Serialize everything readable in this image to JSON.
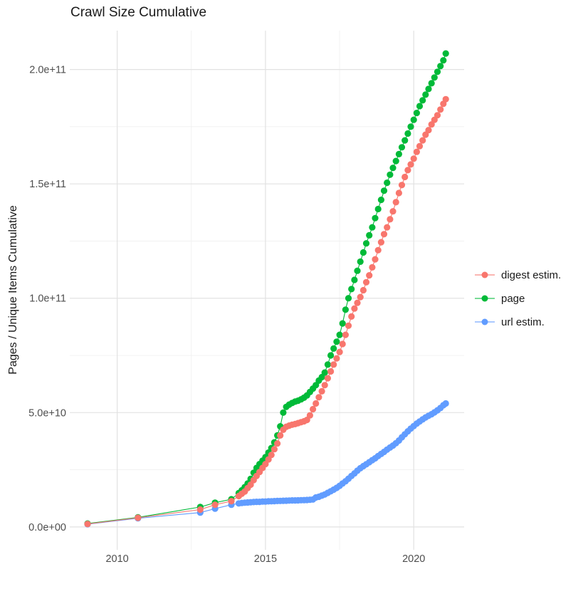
{
  "title": "Crawl Size Cumulative",
  "y_axis": {
    "label": "Pages / Unique Items Cumulative"
  },
  "chart_data": {
    "type": "line",
    "title": "Crawl Size Cumulative",
    "xlabel": "",
    "ylabel": "Pages / Unique Items Cumulative",
    "grid": true,
    "legend_position": "right",
    "xlim": [
      2008.4,
      2021.7
    ],
    "ylim": [
      -10000000000.0,
      217000000000.0
    ],
    "x_ticks": [
      {
        "value": 2010,
        "label": "2010"
      },
      {
        "value": 2015,
        "label": "2015"
      },
      {
        "value": 2020,
        "label": "2020"
      }
    ],
    "x_minor": [
      2012.5,
      2017.5
    ],
    "y_ticks": [
      {
        "value": 0,
        "label": "0.0e+00"
      },
      {
        "value": 50000000000.0,
        "label": "5.0e+10"
      },
      {
        "value": 100000000000.0,
        "label": "1.0e+11"
      },
      {
        "value": 150000000000.0,
        "label": "1.5e+11"
      },
      {
        "value": 200000000000.0,
        "label": "2.0e+11"
      }
    ],
    "y_minor": [
      25000000000.0,
      75000000000.0,
      125000000000.0,
      175000000000.0
    ],
    "draw_order": [
      "page",
      "url estim.",
      "digest estim."
    ],
    "series": [
      {
        "name": "digest estim.",
        "color": "#F8766D",
        "points": [
          [
            2009.0,
            1300000000.0
          ],
          [
            2010.7,
            4000000000.0
          ],
          [
            2012.8,
            7600000000.0
          ],
          [
            2013.3,
            9700000000.0
          ],
          [
            2013.85,
            11300000000.0
          ],
          [
            2014.1,
            13500000000.0
          ],
          [
            2014.2,
            14500000000.0
          ],
          [
            2014.3,
            15500000000.0
          ],
          [
            2014.4,
            17000000000.0
          ],
          [
            2014.5,
            18500000000.0
          ],
          [
            2014.6,
            20500000000.0
          ],
          [
            2014.7,
            22300000000.0
          ],
          [
            2014.8,
            24000000000.0
          ],
          [
            2014.9,
            25800000000.0
          ],
          [
            2015.0,
            27500000000.0
          ],
          [
            2015.1,
            29500000000.0
          ],
          [
            2015.2,
            31500000000.0
          ],
          [
            2015.3,
            34000000000.0
          ],
          [
            2015.4,
            36500000000.0
          ],
          [
            2015.5,
            40000000000.0
          ],
          [
            2015.6,
            42500000000.0
          ],
          [
            2015.7,
            43800000000.0
          ],
          [
            2015.8,
            44300000000.0
          ],
          [
            2015.9,
            44700000000.0
          ],
          [
            2016.0,
            45000000000.0
          ],
          [
            2016.1,
            45400000000.0
          ],
          [
            2016.2,
            45800000000.0
          ],
          [
            2016.3,
            46200000000.0
          ],
          [
            2016.4,
            46800000000.0
          ],
          [
            2016.5,
            48800000000.0
          ],
          [
            2016.6,
            51500000000.0
          ],
          [
            2016.7,
            54000000000.0
          ],
          [
            2016.8,
            56700000000.0
          ],
          [
            2016.9,
            59300000000.0
          ],
          [
            2017.0,
            62000000000.0
          ],
          [
            2017.1,
            65000000000.0
          ],
          [
            2017.2,
            68000000000.0
          ],
          [
            2017.3,
            71000000000.0
          ],
          [
            2017.4,
            73700000000.0
          ],
          [
            2017.5,
            76500000000.0
          ],
          [
            2017.6,
            80000000000.0
          ],
          [
            2017.7,
            84000000000.0
          ],
          [
            2017.8,
            88000000000.0
          ],
          [
            2017.9,
            92000000000.0
          ],
          [
            2018.0,
            95500000000.0
          ],
          [
            2018.1,
            98000000000.0
          ],
          [
            2018.2,
            100500000000.0
          ],
          [
            2018.3,
            103500000000.0
          ],
          [
            2018.4,
            107000000000.0
          ],
          [
            2018.5,
            110000000000.0
          ],
          [
            2018.6,
            113500000000.0
          ],
          [
            2018.7,
            117000000000.0
          ],
          [
            2018.8,
            121000000000.0
          ],
          [
            2018.9,
            124500000000.0
          ],
          [
            2019.0,
            128000000000.0
          ],
          [
            2019.1,
            131000000000.0
          ],
          [
            2019.2,
            134500000000.0
          ],
          [
            2019.3,
            138000000000.0
          ],
          [
            2019.4,
            142000000000.0
          ],
          [
            2019.5,
            146000000000.0
          ],
          [
            2019.6,
            149500000000.0
          ],
          [
            2019.7,
            153000000000.0
          ],
          [
            2019.8,
            156000000000.0
          ],
          [
            2019.9,
            158500000000.0
          ],
          [
            2020.0,
            161000000000.0
          ],
          [
            2020.1,
            164000000000.0
          ],
          [
            2020.2,
            166500000000.0
          ],
          [
            2020.3,
            169000000000.0
          ],
          [
            2020.4,
            171500000000.0
          ],
          [
            2020.5,
            173500000000.0
          ],
          [
            2020.6,
            176000000000.0
          ],
          [
            2020.7,
            178000000000.0
          ],
          [
            2020.8,
            180000000000.0
          ],
          [
            2020.9,
            182500000000.0
          ],
          [
            2021.0,
            185000000000.0
          ],
          [
            2021.08,
            187000000000.0
          ]
        ]
      },
      {
        "name": "page",
        "color": "#00BA38",
        "points": [
          [
            2009.0,
            1500000000.0
          ],
          [
            2010.7,
            4200000000.0
          ],
          [
            2012.8,
            8700000000.0
          ],
          [
            2013.3,
            10600000000.0
          ],
          [
            2013.85,
            12100000000.0
          ],
          [
            2014.1,
            14800000000.0
          ],
          [
            2014.2,
            16000000000.0
          ],
          [
            2014.3,
            17400000000.0
          ],
          [
            2014.4,
            19000000000.0
          ],
          [
            2014.5,
            21000000000.0
          ],
          [
            2014.6,
            23700000000.0
          ],
          [
            2014.7,
            25800000000.0
          ],
          [
            2014.8,
            27500000000.0
          ],
          [
            2014.9,
            29000000000.0
          ],
          [
            2015.0,
            30500000000.0
          ],
          [
            2015.1,
            32500000000.0
          ],
          [
            2015.2,
            34500000000.0
          ],
          [
            2015.3,
            37000000000.0
          ],
          [
            2015.4,
            40000000000.0
          ],
          [
            2015.5,
            44000000000.0
          ],
          [
            2015.6,
            50000000000.0
          ],
          [
            2015.7,
            52500000000.0
          ],
          [
            2015.8,
            53500000000.0
          ],
          [
            2015.9,
            54200000000.0
          ],
          [
            2016.0,
            54800000000.0
          ],
          [
            2016.1,
            55200000000.0
          ],
          [
            2016.2,
            55800000000.0
          ],
          [
            2016.3,
            56500000000.0
          ],
          [
            2016.4,
            57500000000.0
          ],
          [
            2016.5,
            59000000000.0
          ],
          [
            2016.6,
            60500000000.0
          ],
          [
            2016.7,
            62000000000.0
          ],
          [
            2016.8,
            64000000000.0
          ],
          [
            2016.9,
            65500000000.0
          ],
          [
            2017.0,
            67500000000.0
          ],
          [
            2017.1,
            71000000000.0
          ],
          [
            2017.2,
            75000000000.0
          ],
          [
            2017.3,
            78000000000.0
          ],
          [
            2017.4,
            81000000000.0
          ],
          [
            2017.5,
            84000000000.0
          ],
          [
            2017.6,
            89000000000.0
          ],
          [
            2017.7,
            95000000000.0
          ],
          [
            2017.8,
            100000000000.0
          ],
          [
            2017.9,
            104000000000.0
          ],
          [
            2018.0,
            108000000000.0
          ],
          [
            2018.1,
            112000000000.0
          ],
          [
            2018.2,
            116000000000.0
          ],
          [
            2018.3,
            120000000000.0
          ],
          [
            2018.4,
            124000000000.0
          ],
          [
            2018.5,
            127500000000.0
          ],
          [
            2018.6,
            131000000000.0
          ],
          [
            2018.7,
            135000000000.0
          ],
          [
            2018.8,
            139000000000.0
          ],
          [
            2018.9,
            143000000000.0
          ],
          [
            2019.0,
            147000000000.0
          ],
          [
            2019.1,
            150500000000.0
          ],
          [
            2019.2,
            154000000000.0
          ],
          [
            2019.3,
            157000000000.0
          ],
          [
            2019.4,
            160000000000.0
          ],
          [
            2019.5,
            163000000000.0
          ],
          [
            2019.6,
            166000000000.0
          ],
          [
            2019.7,
            169000000000.0
          ],
          [
            2019.8,
            172000000000.0
          ],
          [
            2019.9,
            175000000000.0
          ],
          [
            2020.0,
            178000000000.0
          ],
          [
            2020.1,
            181000000000.0
          ],
          [
            2020.2,
            184000000000.0
          ],
          [
            2020.3,
            186500000000.0
          ],
          [
            2020.4,
            189000000000.0
          ],
          [
            2020.5,
            191500000000.0
          ],
          [
            2020.6,
            194000000000.0
          ],
          [
            2020.7,
            196500000000.0
          ],
          [
            2020.8,
            199000000000.0
          ],
          [
            2020.9,
            201500000000.0
          ],
          [
            2021.0,
            204000000000.0
          ],
          [
            2021.08,
            207000000000.0
          ]
        ]
      },
      {
        "name": "url estim.",
        "color": "#619CFF",
        "points": [
          [
            2009.0,
            1200000000.0
          ],
          [
            2010.7,
            3800000000.0
          ],
          [
            2012.8,
            6300000000.0
          ],
          [
            2013.3,
            8000000000.0
          ],
          [
            2013.85,
            9700000000.0
          ],
          [
            2014.1,
            10300000000.0
          ],
          [
            2014.2,
            10500000000.0
          ],
          [
            2014.3,
            10600000000.0
          ],
          [
            2014.4,
            10700000000.0
          ],
          [
            2014.5,
            10800000000.0
          ],
          [
            2014.6,
            10900000000.0
          ],
          [
            2014.7,
            11000000000.0
          ],
          [
            2014.8,
            11000000000.0
          ],
          [
            2014.9,
            11100000000.0
          ],
          [
            2015.0,
            11100000000.0
          ],
          [
            2015.1,
            11200000000.0
          ],
          [
            2015.2,
            11250000000.0
          ],
          [
            2015.3,
            11300000000.0
          ],
          [
            2015.4,
            11350000000.0
          ],
          [
            2015.5,
            11400000000.0
          ],
          [
            2015.6,
            11450000000.0
          ],
          [
            2015.7,
            11500000000.0
          ],
          [
            2015.8,
            11550000000.0
          ],
          [
            2015.9,
            11600000000.0
          ],
          [
            2016.0,
            11600000000.0
          ],
          [
            2016.1,
            11650000000.0
          ],
          [
            2016.2,
            11700000000.0
          ],
          [
            2016.3,
            11750000000.0
          ],
          [
            2016.4,
            11800000000.0
          ],
          [
            2016.5,
            11900000000.0
          ],
          [
            2016.6,
            12000000000.0
          ],
          [
            2016.7,
            12900000000.0
          ],
          [
            2016.8,
            13200000000.0
          ],
          [
            2016.9,
            13700000000.0
          ],
          [
            2017.0,
            14200000000.0
          ],
          [
            2017.1,
            14900000000.0
          ],
          [
            2017.2,
            15600000000.0
          ],
          [
            2017.3,
            16300000000.0
          ],
          [
            2017.4,
            17100000000.0
          ],
          [
            2017.5,
            18000000000.0
          ],
          [
            2017.6,
            19000000000.0
          ],
          [
            2017.7,
            20000000000.0
          ],
          [
            2017.8,
            21100000000.0
          ],
          [
            2017.9,
            22300000000.0
          ],
          [
            2018.0,
            23400000000.0
          ],
          [
            2018.1,
            24600000000.0
          ],
          [
            2018.2,
            25700000000.0
          ],
          [
            2018.3,
            26600000000.0
          ],
          [
            2018.4,
            27400000000.0
          ],
          [
            2018.5,
            28300000000.0
          ],
          [
            2018.6,
            29200000000.0
          ],
          [
            2018.7,
            30000000000.0
          ],
          [
            2018.8,
            31000000000.0
          ],
          [
            2018.9,
            31900000000.0
          ],
          [
            2019.0,
            32800000000.0
          ],
          [
            2019.1,
            33800000000.0
          ],
          [
            2019.2,
            34700000000.0
          ],
          [
            2019.3,
            35600000000.0
          ],
          [
            2019.4,
            36600000000.0
          ],
          [
            2019.5,
            37800000000.0
          ],
          [
            2019.6,
            39200000000.0
          ],
          [
            2019.7,
            40500000000.0
          ],
          [
            2019.8,
            41800000000.0
          ],
          [
            2019.9,
            43000000000.0
          ],
          [
            2020.0,
            44100000000.0
          ],
          [
            2020.1,
            45200000000.0
          ],
          [
            2020.2,
            46100000000.0
          ],
          [
            2020.3,
            47000000000.0
          ],
          [
            2020.4,
            47900000000.0
          ],
          [
            2020.5,
            48600000000.0
          ],
          [
            2020.6,
            49300000000.0
          ],
          [
            2020.7,
            50100000000.0
          ],
          [
            2020.8,
            51000000000.0
          ],
          [
            2020.9,
            52000000000.0
          ],
          [
            2021.0,
            53200000000.0
          ],
          [
            2021.08,
            54000000000.0
          ]
        ]
      }
    ]
  },
  "legend": {
    "items": [
      "digest estim.",
      "page",
      "url estim."
    ]
  }
}
